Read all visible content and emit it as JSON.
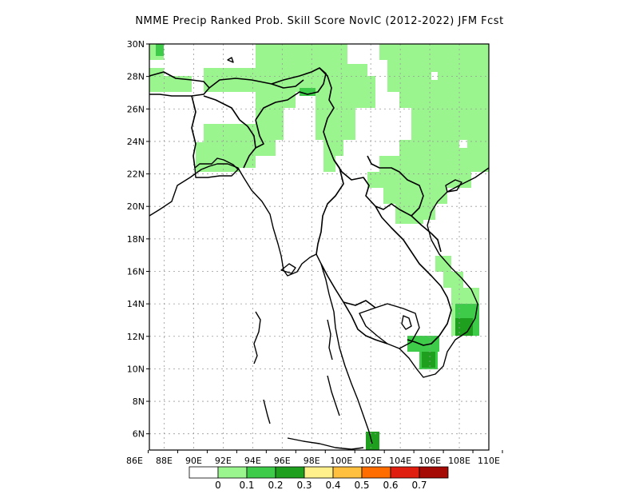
{
  "title": "NMME Precip Ranked Prob. Skill Score NovIC (2012-2022) JFM Fcst",
  "map": {
    "lon_range": [
      87,
      110
    ],
    "lat_range": [
      5,
      30
    ],
    "x_tick_labels": [
      "86E",
      "88E",
      "90E",
      "92E",
      "94E",
      "96E",
      "98E",
      "100E",
      "102E",
      "104E",
      "106E",
      "108E",
      "110E"
    ],
    "y_tick_labels": [
      "6N",
      "8N",
      "10N",
      "12N",
      "14N",
      "16N",
      "18N",
      "20N",
      "22N",
      "24N",
      "26N",
      "28N",
      "30N"
    ],
    "grid": true
  },
  "legend": {
    "bins": [
      {
        "color": "#ffffff"
      },
      {
        "color": "#9af58f"
      },
      {
        "color": "#3ecb4a"
      },
      {
        "color": "#1ea01e"
      },
      {
        "color": "#fff08c"
      },
      {
        "color": "#ffbf3f"
      },
      {
        "color": "#ff6c00"
      },
      {
        "color": "#e01e10"
      },
      {
        "color": "#a50a05"
      }
    ],
    "labels": [
      "0",
      "0.1",
      "0.2",
      "0.3",
      "0.4",
      "0.5",
      "0.6",
      "0.7"
    ]
  },
  "colors": {
    "light_green": "#9af58f",
    "mid_green": "#3ecb4a",
    "dark_green": "#1ea01e"
  }
}
